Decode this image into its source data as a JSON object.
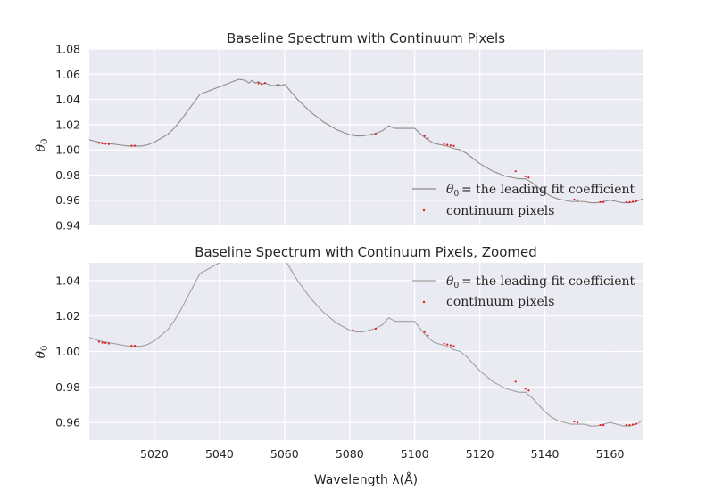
{
  "chart_data": [
    {
      "type": "line",
      "title": "Baseline Spectrum with Continuum Pixels",
      "ylabel": "θ0",
      "xlabel": "",
      "xlim": [
        5000,
        5170
      ],
      "ylim": [
        0.94,
        1.08
      ],
      "xticks": [
        5020,
        5040,
        5060,
        5080,
        5100,
        5120,
        5140,
        5160
      ],
      "xtick_labels_visible": false,
      "yticks": [
        0.94,
        0.96,
        0.98,
        1.0,
        1.02,
        1.04,
        1.06,
        1.08
      ],
      "ytick_labels": [
        "0.94",
        "0.96",
        "0.98",
        "1.00",
        "1.02",
        "1.04",
        "1.06",
        "1.08"
      ],
      "grid": true,
      "legend_position": "lower-right",
      "series": [
        {
          "name": "= the leading fit coefficient",
          "kind": "line",
          "color": "#8c8c8c"
        },
        {
          "name": "continuum pixels",
          "kind": "points",
          "color": "#e41a1c"
        }
      ]
    },
    {
      "type": "line",
      "title": "Baseline Spectrum with Continuum Pixels, Zoomed",
      "ylabel": "θ0",
      "xlabel": "Wavelength λ(Å)",
      "xlim": [
        5000,
        5170
      ],
      "ylim": [
        0.95,
        1.05
      ],
      "xticks": [
        5020,
        5040,
        5060,
        5080,
        5100,
        5120,
        5140,
        5160
      ],
      "xtick_labels": [
        "5020",
        "5040",
        "5060",
        "5080",
        "5100",
        "5120",
        "5140",
        "5160"
      ],
      "yticks": [
        0.96,
        0.98,
        1.0,
        1.02,
        1.04
      ],
      "ytick_labels": [
        "0.96",
        "0.98",
        "1.00",
        "1.02",
        "1.04"
      ],
      "grid": true,
      "legend_position": "upper-right",
      "series": [
        {
          "name": "= the leading fit coefficient",
          "kind": "line",
          "color": "#a0a0a0"
        },
        {
          "name": "continuum pixels",
          "kind": "points",
          "color": "#e41a1c"
        }
      ]
    }
  ],
  "spectrum": {
    "x": [
      5000,
      5003,
      5006,
      5009,
      5012,
      5014,
      5016,
      5018,
      5020,
      5022,
      5024,
      5026,
      5028,
      5030,
      5032,
      5034,
      5036,
      5038,
      5040,
      5042,
      5044,
      5046,
      5048,
      5049,
      5050,
      5051,
      5052,
      5053,
      5054,
      5055,
      5056,
      5057,
      5058,
      5059,
      5060,
      5062,
      5064,
      5066,
      5068,
      5070,
      5072,
      5074,
      5076,
      5078,
      5080,
      5082,
      5084,
      5086,
      5088,
      5090,
      5092,
      5093,
      5094,
      5096,
      5098,
      5100,
      5102,
      5104,
      5106,
      5108,
      5110,
      5112,
      5114,
      5116,
      5118,
      5120,
      5122,
      5124,
      5126,
      5128,
      5130,
      5132,
      5134,
      5136,
      5138,
      5140,
      5142,
      5144,
      5146,
      5148,
      5150,
      5152,
      5154,
      5156,
      5158,
      5160,
      5162,
      5164,
      5166,
      5168,
      5170
    ],
    "y": [
      1.008,
      1.006,
      1.005,
      1.004,
      1.003,
      1.003,
      1.003,
      1.004,
      1.006,
      1.009,
      1.012,
      1.017,
      1.023,
      1.03,
      1.037,
      1.044,
      1.046,
      1.048,
      1.05,
      1.052,
      1.054,
      1.056,
      1.055,
      1.053,
      1.055,
      1.053,
      1.054,
      1.052,
      1.053,
      1.052,
      1.051,
      1.051,
      1.052,
      1.051,
      1.052,
      1.046,
      1.04,
      1.035,
      1.03,
      1.026,
      1.022,
      1.019,
      1.016,
      1.014,
      1.012,
      1.011,
      1.011,
      1.012,
      1.013,
      1.015,
      1.019,
      1.018,
      1.017,
      1.017,
      1.017,
      1.017,
      1.012,
      1.008,
      1.005,
      1.004,
      1.003,
      1.001,
      1.0,
      0.997,
      0.993,
      0.989,
      0.986,
      0.983,
      0.981,
      0.979,
      0.978,
      0.977,
      0.977,
      0.974,
      0.97,
      0.966,
      0.963,
      0.961,
      0.96,
      0.959,
      0.959,
      0.959,
      0.958,
      0.958,
      0.959,
      0.96,
      0.959,
      0.958,
      0.958,
      0.959,
      0.961
    ]
  },
  "continuum_pixels": {
    "x": [
      5003,
      5004,
      5005,
      5006,
      5013,
      5014,
      5052,
      5053,
      5054,
      5058,
      5081,
      5088,
      5103,
      5104,
      5109,
      5110,
      5111,
      5112,
      5131,
      5134,
      5135,
      5149,
      5150,
      5157,
      5158,
      5165,
      5166,
      5167,
      5168
    ],
    "y": [
      1.0055,
      1.005,
      1.0048,
      1.0045,
      1.0032,
      1.0032,
      1.0528,
      1.0522,
      1.053,
      1.0512,
      1.012,
      1.0128,
      1.011,
      1.009,
      1.0045,
      1.004,
      1.0035,
      1.003,
      0.983,
      0.979,
      0.978,
      0.9605,
      0.96,
      0.9585,
      0.9585,
      0.9585,
      0.9585,
      0.9588,
      0.9592
    ]
  }
}
